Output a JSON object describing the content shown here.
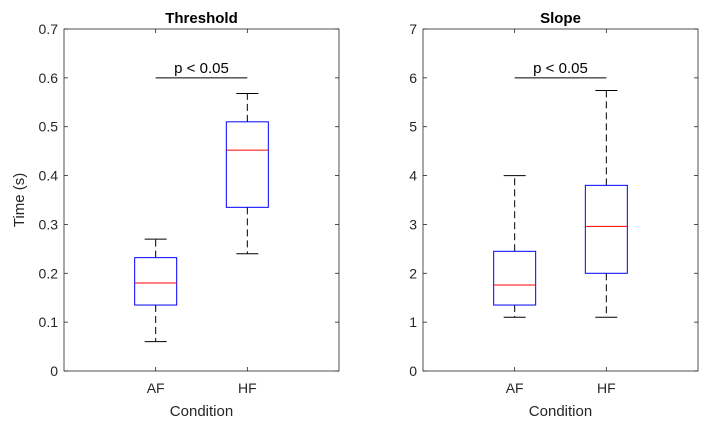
{
  "chart_data": [
    {
      "type": "box",
      "title": "Threshold",
      "xlabel": "Condition",
      "ylabel": "Time (s)",
      "ylim": [
        0,
        0.7
      ],
      "yticks": [
        "0",
        "0.1",
        "0.2",
        "0.3",
        "0.4",
        "0.5",
        "0.6",
        "0.7"
      ],
      "categories": [
        "AF",
        "HF"
      ],
      "boxes": [
        {
          "category": "AF",
          "whisker_low": 0.06,
          "q1": 0.135,
          "median": 0.18,
          "q3": 0.232,
          "whisker_high": 0.27
        },
        {
          "category": "HF",
          "whisker_low": 0.24,
          "q1": 0.335,
          "median": 0.452,
          "q3": 0.51,
          "whisker_high": 0.568
        }
      ],
      "annotation": {
        "text": "p < 0.05",
        "y": 0.6
      },
      "grid": false,
      "colors": {
        "box": "#0000ff",
        "median": "#ff0000",
        "whisker": "#000000"
      }
    },
    {
      "type": "box",
      "title": "Slope",
      "xlabel": "Condition",
      "ylabel": "",
      "ylim": [
        0,
        7
      ],
      "yticks": [
        "0",
        "1",
        "2",
        "3",
        "4",
        "5",
        "6",
        "7"
      ],
      "categories": [
        "AF",
        "HF"
      ],
      "boxes": [
        {
          "category": "AF",
          "whisker_low": 1.1,
          "q1": 1.35,
          "median": 1.76,
          "q3": 2.45,
          "whisker_high": 4.0
        },
        {
          "category": "HF",
          "whisker_low": 1.1,
          "q1": 2.0,
          "median": 2.96,
          "q3": 3.8,
          "whisker_high": 5.74
        }
      ],
      "annotation": {
        "text": "p < 0.05",
        "y": 6.0
      },
      "grid": false,
      "colors": {
        "box": "#0000ff",
        "median": "#ff0000",
        "whisker": "#000000"
      }
    }
  ]
}
